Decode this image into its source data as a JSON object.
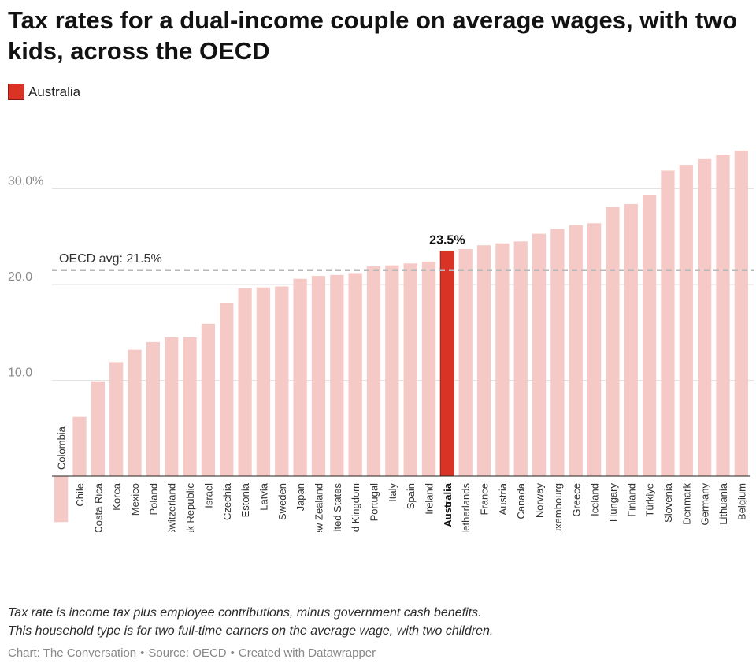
{
  "title": "Tax rates for a dual-income couple on average wages, with two kids, across the OECD",
  "legend": {
    "label": "Australia",
    "color": "#d93326"
  },
  "colors": {
    "highlight": "#d93326",
    "highlight_stroke": "#a52219",
    "base": "#f5cac6",
    "grid": "#e2e2e2",
    "avg_line": "#b8b8b8"
  },
  "chart_data": {
    "type": "bar",
    "categories": [
      "Colombia",
      "Chile",
      "Costa Rica",
      "Korea",
      "Mexico",
      "Poland",
      "Switzerland",
      "Slovak Republic",
      "Israel",
      "Czechia",
      "Estonia",
      "Latvia",
      "Sweden",
      "Japan",
      "New Zealand",
      "United States",
      "United Kingdom",
      "Portugal",
      "Italy",
      "Spain",
      "Ireland",
      "Australia",
      "Netherlands",
      "France",
      "Austria",
      "Canada",
      "Norway",
      "Luxembourg",
      "Greece",
      "Iceland",
      "Hungary",
      "Finland",
      "Türkiye",
      "Slovenia",
      "Denmark",
      "Germany",
      "Lithuania",
      "Belgium"
    ],
    "values": [
      -4.8,
      6.2,
      9.9,
      11.9,
      13.2,
      14.0,
      14.5,
      14.5,
      15.9,
      18.1,
      19.6,
      19.7,
      19.8,
      20.6,
      20.9,
      21.0,
      21.2,
      21.9,
      22.0,
      22.2,
      22.4,
      23.5,
      23.7,
      24.1,
      24.3,
      24.5,
      25.3,
      25.8,
      26.2,
      26.4,
      28.1,
      28.4,
      29.3,
      31.9,
      32.5,
      33.1,
      33.5,
      34.0
    ],
    "highlight": "Australia",
    "highlight_label": "23.5%",
    "y_ticks": [
      {
        "value": 10,
        "label": "10.0"
      },
      {
        "value": 20,
        "label": "20.0"
      },
      {
        "value": 30,
        "label": "30.0%"
      }
    ],
    "ylim": [
      -5,
      35
    ],
    "grid": true,
    "reference_line": {
      "value": 21.5,
      "label": "OECD avg: 21.5%"
    }
  },
  "note": {
    "line1": "Tax rate is income tax plus employee contributions, minus government cash benefits.",
    "line2": "This household type is for two full-time earners on the average wage, with two children."
  },
  "footer": {
    "chart": "Chart: The Conversation",
    "source": "Source: OECD",
    "created": "Created with Datawrapper",
    "separator": "•"
  }
}
